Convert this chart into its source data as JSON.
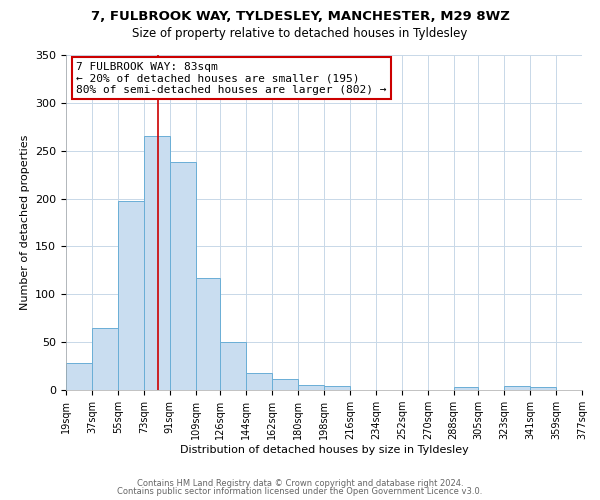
{
  "title_line1": "7, FULBROOK WAY, TYLDESLEY, MANCHESTER, M29 8WZ",
  "title_line2": "Size of property relative to detached houses in Tyldesley",
  "xlabel": "Distribution of detached houses by size in Tyldesley",
  "ylabel": "Number of detached properties",
  "bin_edges": [
    19,
    37,
    55,
    73,
    91,
    109,
    126,
    144,
    162,
    180,
    198,
    216,
    234,
    252,
    270,
    288,
    305,
    323,
    341,
    359,
    377
  ],
  "bin_heights": [
    28,
    65,
    197,
    265,
    238,
    117,
    50,
    18,
    11,
    5,
    4,
    0,
    0,
    0,
    0,
    3,
    0,
    4,
    3,
    0
  ],
  "bar_color": "#c9ddf0",
  "bar_edge_color": "#6aaed6",
  "property_value": 83,
  "annotation_text": "7 FULBROOK WAY: 83sqm\n← 20% of detached houses are smaller (195)\n80% of semi-detached houses are larger (802) →",
  "annotation_box_color": "#ffffff",
  "annotation_box_edge_color": "#cc0000",
  "vline_color": "#cc0000",
  "ylim": [
    0,
    350
  ],
  "background_color": "#ffffff",
  "grid_color": "#c8d8e8",
  "footer_line1": "Contains HM Land Registry data © Crown copyright and database right 2024.",
  "footer_line2": "Contains public sector information licensed under the Open Government Licence v3.0.",
  "tick_labels": [
    "19sqm",
    "37sqm",
    "55sqm",
    "73sqm",
    "91sqm",
    "109sqm",
    "126sqm",
    "144sqm",
    "162sqm",
    "180sqm",
    "198sqm",
    "216sqm",
    "234sqm",
    "252sqm",
    "270sqm",
    "288sqm",
    "305sqm",
    "323sqm",
    "341sqm",
    "359sqm",
    "377sqm"
  ],
  "yticks": [
    0,
    50,
    100,
    150,
    200,
    250,
    300,
    350
  ],
  "title1_fontsize": 9.5,
  "title2_fontsize": 8.5,
  "ylabel_fontsize": 8,
  "xlabel_fontsize": 8,
  "tick_fontsize": 7,
  "annot_fontsize": 8,
  "footer_fontsize": 6,
  "footer_color": "#666666"
}
